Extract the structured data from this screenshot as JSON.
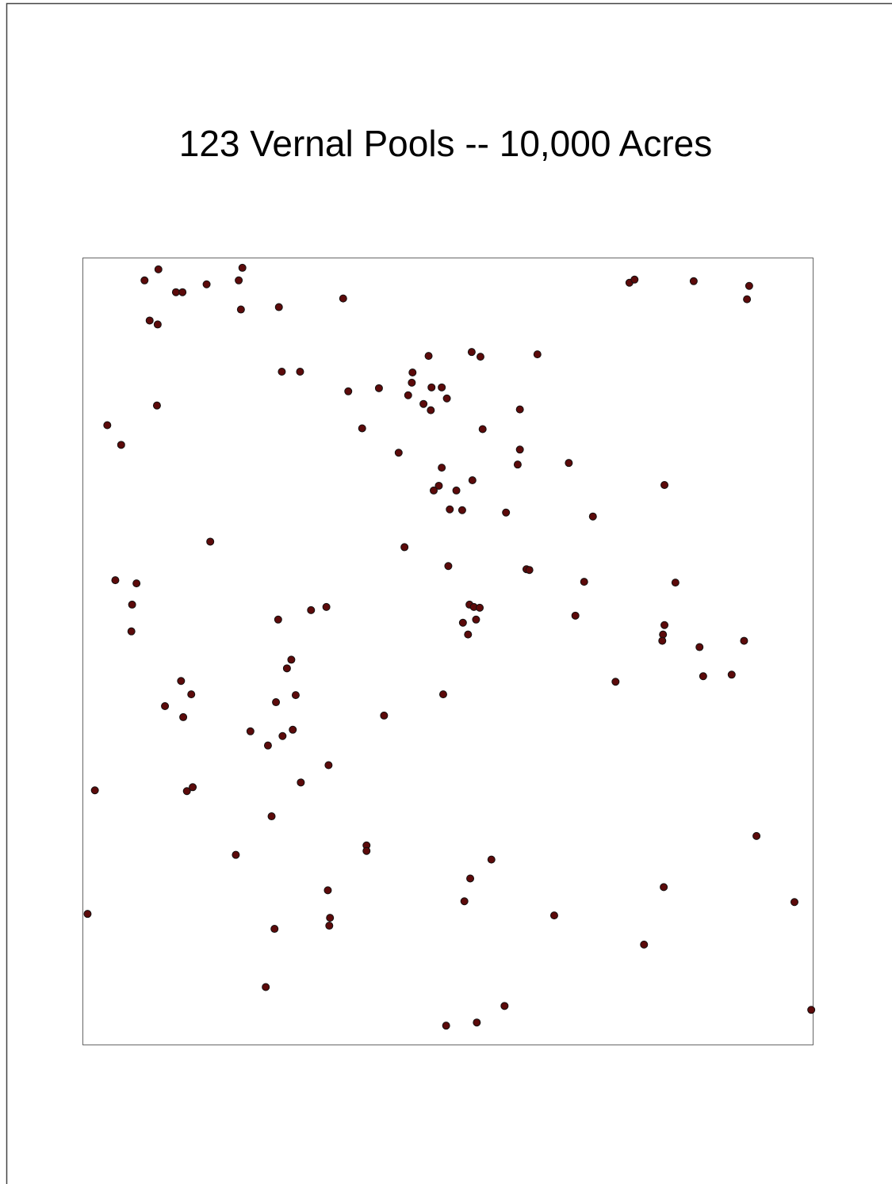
{
  "chart_data": {
    "type": "scatter",
    "title": "123 Vernal Pools -- 10,000 Acres",
    "color": "#5c0a0a",
    "xlim": [
      0,
      100
    ],
    "ylim": [
      0,
      100
    ],
    "x": [
      8.5,
      10.4,
      12.8,
      13.7,
      17.0,
      21.4,
      21.9,
      21.7,
      26.9,
      35.7,
      9.2,
      10.3,
      74.9,
      75.6,
      83.7,
      91.3,
      91.0,
      47.4,
      53.3,
      54.5,
      62.3,
      27.3,
      29.8,
      45.2,
      45.1,
      44.6,
      47.8,
      49.2,
      46.7,
      47.7,
      49.9,
      36.4,
      40.6,
      59.9,
      10.2,
      3.4,
      5.3,
      38.3,
      54.8,
      43.3,
      59.9,
      59.6,
      66.6,
      49.2,
      53.4,
      48.8,
      48.1,
      51.2,
      50.3,
      52.0,
      58.0,
      79.7,
      69.9,
      17.5,
      44.1,
      50.1,
      60.8,
      61.2,
      68.7,
      81.2,
      4.5,
      7.4,
      6.8,
      6.7,
      26.8,
      31.3,
      33.4,
      53.0,
      53.6,
      54.4,
      52.1,
      53.9,
      52.8,
      67.5,
      79.7,
      79.5,
      79.4,
      84.5,
      90.6,
      85.0,
      88.9,
      73.0,
      13.5,
      14.9,
      11.3,
      13.8,
      28.6,
      28.0,
      29.2,
      26.5,
      23.0,
      28.8,
      27.4,
      25.4,
      49.4,
      41.3,
      33.7,
      29.9,
      1.7,
      14.3,
      15.1,
      25.9,
      92.3,
      38.9,
      38.9,
      21.0,
      56.0,
      53.1,
      79.6,
      33.6,
      52.3,
      97.5,
      0.7,
      64.6,
      33.9,
      33.8,
      26.3,
      76.9,
      25.1,
      57.8,
      99.8,
      54.0,
      49.8
    ],
    "values": [
      97.1,
      98.5,
      95.6,
      95.6,
      96.6,
      97.1,
      98.7,
      93.4,
      93.7,
      94.8,
      92.0,
      91.5,
      96.8,
      97.2,
      97.0,
      96.4,
      94.7,
      87.5,
      88.0,
      87.4,
      87.7,
      85.5,
      85.5,
      85.4,
      84.1,
      82.5,
      83.5,
      83.5,
      81.4,
      80.6,
      82.1,
      83.0,
      83.4,
      80.7,
      81.2,
      78.7,
      76.2,
      78.3,
      78.2,
      75.2,
      75.6,
      73.7,
      73.9,
      73.3,
      71.7,
      71.0,
      70.4,
      70.4,
      68.0,
      67.9,
      67.6,
      71.1,
      67.1,
      63.9,
      63.2,
      60.8,
      60.4,
      60.3,
      58.8,
      58.7,
      59.0,
      58.6,
      55.9,
      52.5,
      54.0,
      55.2,
      55.6,
      55.9,
      55.6,
      55.5,
      53.6,
      54.0,
      52.1,
      54.5,
      53.3,
      52.1,
      51.3,
      50.5,
      51.3,
      46.8,
      47.0,
      46.1,
      46.2,
      44.5,
      43.0,
      41.6,
      48.9,
      47.8,
      44.4,
      43.5,
      39.8,
      40.0,
      39.2,
      38.0,
      44.5,
      41.8,
      35.5,
      33.3,
      32.3,
      32.2,
      32.7,
      29.0,
      26.5,
      25.3,
      24.6,
      24.1,
      23.5,
      21.1,
      20.0,
      19.6,
      18.2,
      18.1,
      16.6,
      16.4,
      16.1,
      15.1,
      14.7,
      12.7,
      7.3,
      4.9,
      4.4,
      2.8,
      2.4
    ]
  }
}
